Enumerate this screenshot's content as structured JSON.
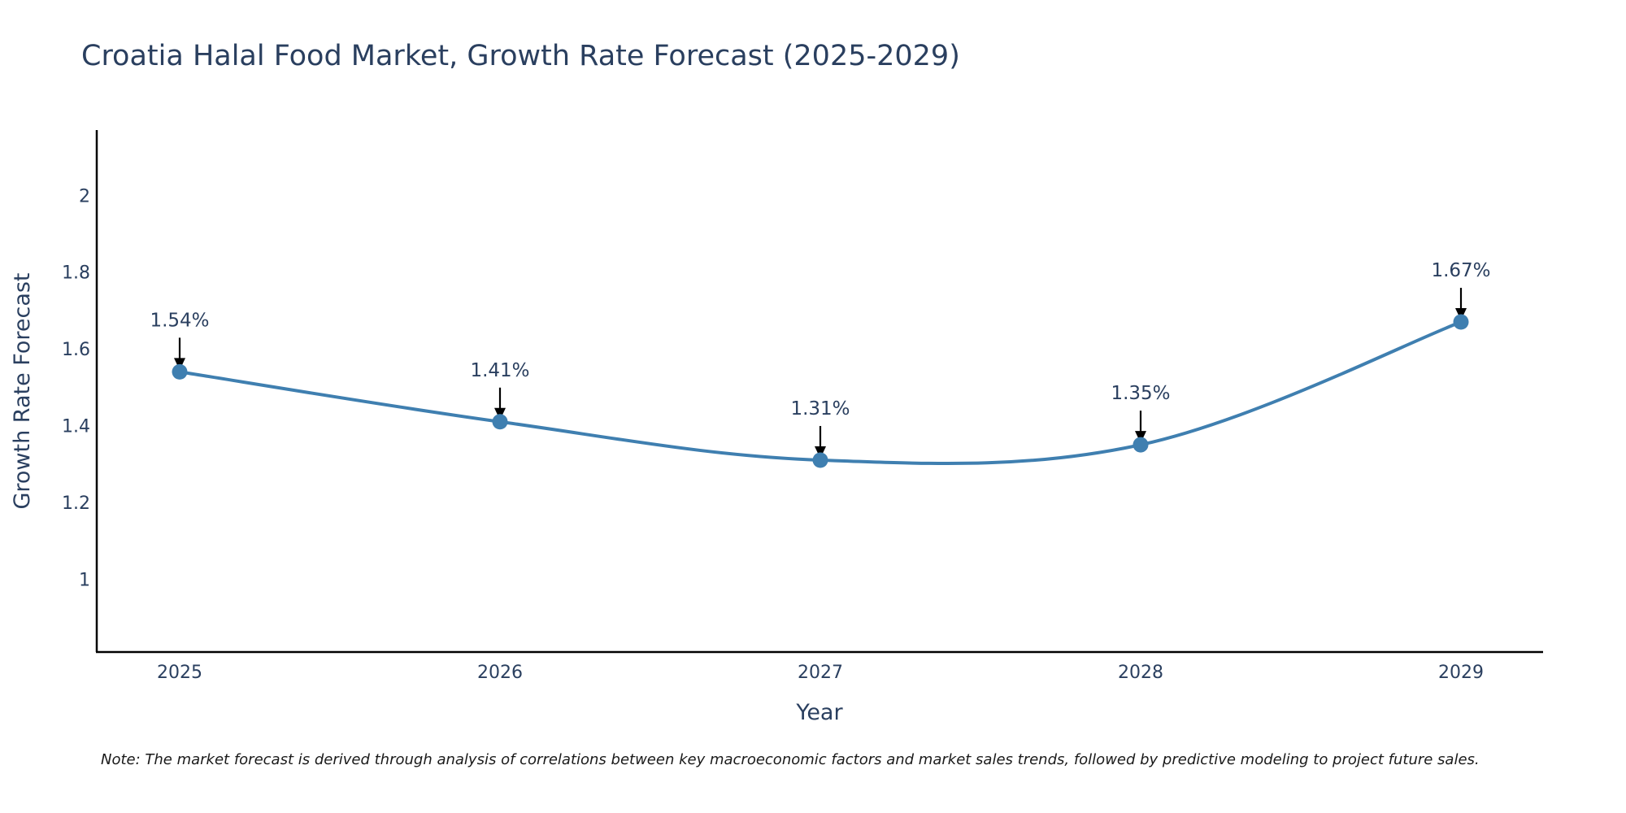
{
  "chart_data": {
    "type": "line",
    "title": "Croatia Halal Food Market, Growth Rate Forecast (2025-2029)",
    "xlabel": "Year",
    "ylabel": "Growth Rate Forecast",
    "categories": [
      "2025",
      "2026",
      "2027",
      "2028",
      "2029"
    ],
    "values": [
      1.54,
      1.41,
      1.31,
      1.35,
      1.67
    ],
    "data_labels": [
      "1.54%",
      "1.41%",
      "1.31%",
      "1.35%",
      "1.67%"
    ],
    "yticks": [
      1,
      1.2,
      1.4,
      1.6,
      1.8,
      2
    ],
    "ytick_labels": [
      "1",
      "1.2",
      "1.4",
      "1.6",
      "1.8",
      "2"
    ],
    "ylim": [
      0.81,
      2.17
    ],
    "line_shape": "spline",
    "grid": false,
    "note": "Note: The market forecast is derived through analysis of correlations between key macroeconomic factors and market sales trends, followed by predictive modeling to project future sales.",
    "colors": {
      "line": "#3f7fb0",
      "marker": "#3f7fb0",
      "arrow": "#000000",
      "axis": "#000000",
      "text": "#2a3f5f"
    }
  }
}
